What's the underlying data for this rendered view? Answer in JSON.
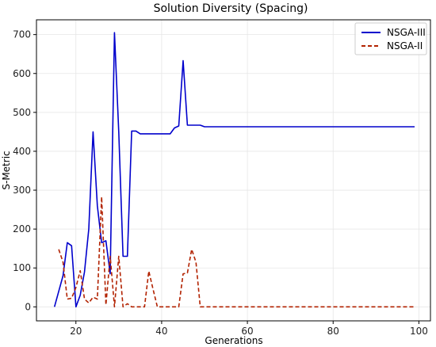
{
  "chart_data": {
    "type": "line",
    "title": "Solution Diversity (Spacing)",
    "xlabel": "Generations",
    "ylabel": "S-Metric",
    "xlim": [
      10.8,
      102.7
    ],
    "ylim": [
      -36,
      738
    ],
    "xticks": [
      20,
      40,
      60,
      80,
      100
    ],
    "yticks": [
      0,
      100,
      200,
      300,
      400,
      500,
      600,
      700
    ],
    "grid": true,
    "legend_position": "top-right",
    "series": [
      {
        "name": "NSGA-III",
        "color": "#0000cc",
        "style": "solid",
        "x": [
          15,
          16,
          17,
          18,
          19,
          20,
          21,
          22,
          23,
          24,
          25,
          26,
          27,
          28,
          29,
          30,
          31,
          32,
          33,
          34,
          35,
          36,
          37,
          38,
          39,
          40,
          41,
          42,
          43,
          44,
          45,
          46,
          47,
          48,
          49,
          50,
          55,
          60,
          70,
          80,
          90,
          99
        ],
        "y": [
          0,
          40,
          80,
          165,
          157,
          0,
          30,
          90,
          200,
          450,
          260,
          165,
          170,
          85,
          705,
          450,
          130,
          130,
          452,
          452,
          445,
          445,
          445,
          445,
          445,
          445,
          445,
          445,
          460,
          465,
          633,
          467,
          467,
          467,
          467,
          463,
          463,
          463,
          463,
          463,
          463,
          463
        ]
      },
      {
        "name": "NSGA-II",
        "color": "#b22200",
        "style": "dashed",
        "x": [
          16,
          17,
          18,
          19,
          20,
          21,
          22,
          23,
          24,
          25,
          26,
          27,
          28,
          29,
          30,
          31,
          32,
          33,
          34,
          35,
          36,
          37,
          38,
          39,
          40,
          41,
          42,
          43,
          44,
          45,
          46,
          47,
          48,
          49,
          50,
          60,
          70,
          80,
          90,
          99
        ],
        "y": [
          148,
          115,
          20,
          22,
          50,
          93,
          20,
          10,
          25,
          20,
          283,
          5,
          130,
          0,
          130,
          0,
          8,
          0,
          0,
          0,
          0,
          92,
          45,
          0,
          0,
          0,
          0,
          0,
          0,
          85,
          87,
          148,
          115,
          0,
          0,
          0,
          0,
          0,
          0,
          0
        ]
      }
    ]
  }
}
